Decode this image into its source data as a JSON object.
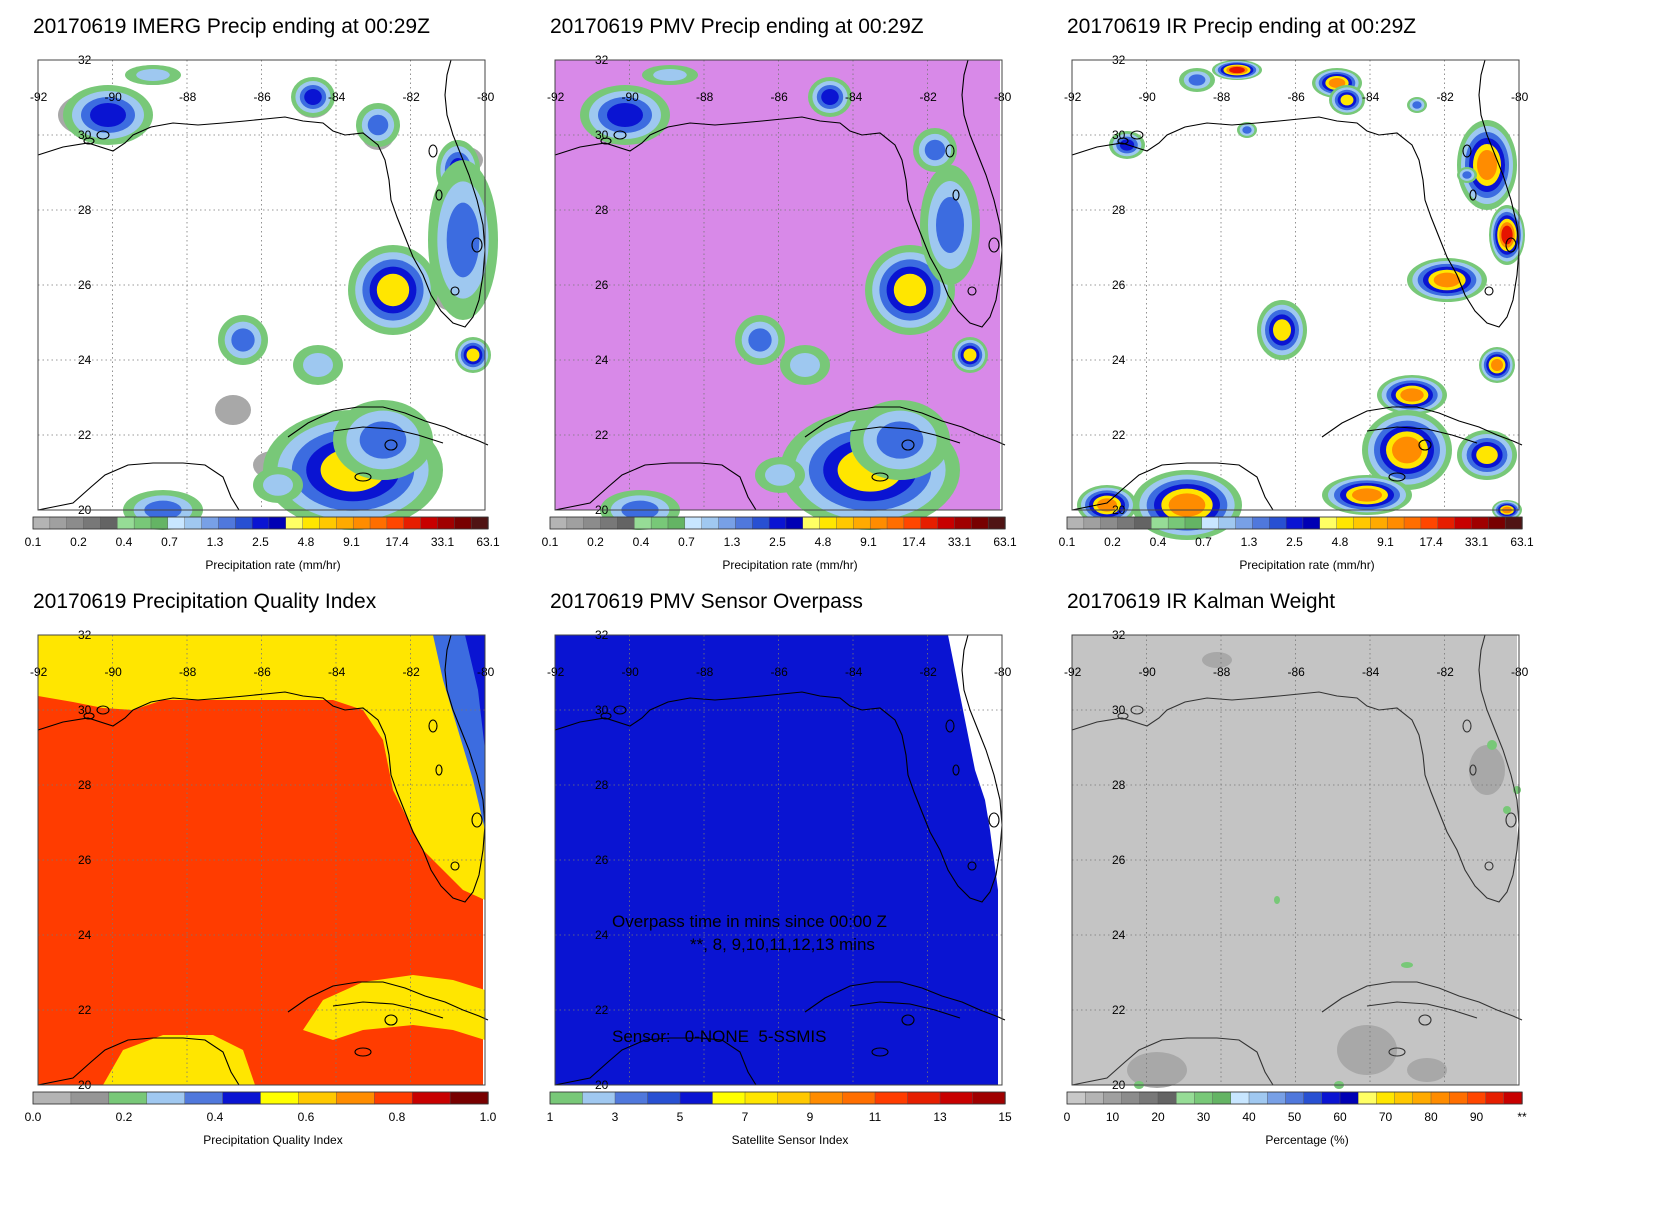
{
  "lat_labels": [
    "32",
    "30",
    "28",
    "26",
    "24",
    "22",
    "20"
  ],
  "lon_labels": [
    "-92",
    "-90",
    "-88",
    "-86",
    "-84",
    "-82",
    "-80"
  ],
  "colors": {
    "white": "#ffffff",
    "gray": "#a8a8a8",
    "gray_light": "#c4c4c4",
    "green": "#78c878",
    "light_blue": "#9ec8f0",
    "blue": "#3c6ce0",
    "dark_blue": "#0a14d2",
    "yellow": "#ffe600",
    "orange": "#ff8c00",
    "red": "#e61400",
    "violet": "#d889e8",
    "qi_red": "#ff3c00"
  },
  "panels": [
    {
      "id": "imerg",
      "title": "20170619 IMERG Precip ending at 00:29Z",
      "colorbar_label": "Precipitation rate (mm/hr)",
      "colorbar_ticks": [
        "0.1",
        "0.2",
        "0.4",
        "0.7",
        "1.3",
        "2.5",
        "4.8",
        "9.1",
        "17.4",
        "33.1",
        "63.1"
      ],
      "colorbar_colors": [
        "#b4b4b4",
        "#a0a0a0",
        "#8c8c8c",
        "#787878",
        "#646464",
        "#96dc96",
        "#78c878",
        "#64b464",
        "#c8e6ff",
        "#a0c8f0",
        "#78a0e6",
        "#5078dc",
        "#2850d2",
        "#0a14d2",
        "#0000b4",
        "#ffff64",
        "#ffe600",
        "#ffc800",
        "#ffaa00",
        "#ff8c00",
        "#ff6e00",
        "#ff4600",
        "#e61e00",
        "#c80000",
        "#a00000",
        "#780000",
        "#501414"
      ]
    },
    {
      "id": "pmv",
      "title": "20170619 PMV Precip ending at 00:29Z",
      "colorbar_label": "Precipitation rate (mm/hr)",
      "colorbar_ticks": [
        "0.1",
        "0.2",
        "0.4",
        "0.7",
        "1.3",
        "2.5",
        "4.8",
        "9.1",
        "17.4",
        "33.1",
        "63.1"
      ],
      "colorbar_colors": [
        "#b4b4b4",
        "#a0a0a0",
        "#8c8c8c",
        "#787878",
        "#646464",
        "#96dc96",
        "#78c878",
        "#64b464",
        "#c8e6ff",
        "#a0c8f0",
        "#78a0e6",
        "#5078dc",
        "#2850d2",
        "#0a14d2",
        "#0000b4",
        "#ffff64",
        "#ffe600",
        "#ffc800",
        "#ffaa00",
        "#ff8c00",
        "#ff6e00",
        "#ff4600",
        "#e61e00",
        "#c80000",
        "#a00000",
        "#780000",
        "#501414"
      ]
    },
    {
      "id": "ir",
      "title": "20170619 IR Precip ending at 00:29Z",
      "colorbar_label": "Precipitation rate (mm/hr)",
      "colorbar_ticks": [
        "0.1",
        "0.2",
        "0.4",
        "0.7",
        "1.3",
        "2.5",
        "4.8",
        "9.1",
        "17.4",
        "33.1",
        "63.1"
      ],
      "colorbar_colors": [
        "#b4b4b4",
        "#a0a0a0",
        "#8c8c8c",
        "#787878",
        "#646464",
        "#96dc96",
        "#78c878",
        "#64b464",
        "#c8e6ff",
        "#a0c8f0",
        "#78a0e6",
        "#5078dc",
        "#2850d2",
        "#0a14d2",
        "#0000b4",
        "#ffff64",
        "#ffe600",
        "#ffc800",
        "#ffaa00",
        "#ff8c00",
        "#ff6e00",
        "#ff4600",
        "#e61e00",
        "#c80000",
        "#a00000",
        "#780000",
        "#501414"
      ]
    },
    {
      "id": "qi",
      "title": "20170619 Precipitation Quality Index",
      "colorbar_label": "Precipitation Quality Index",
      "colorbar_ticks": [
        "0.0",
        "0.2",
        "0.4",
        "0.6",
        "0.8",
        "1.0"
      ],
      "colorbar_colors": [
        "#b4b4b4",
        "#969696",
        "#78c878",
        "#a0c8f0",
        "#5078dc",
        "#0a14d2",
        "#ffff00",
        "#ffc800",
        "#ff8c00",
        "#ff3c00",
        "#c80000",
        "#780000"
      ]
    },
    {
      "id": "sensor",
      "title": "20170619 PMV Sensor Overpass",
      "colorbar_label": "Satellite Sensor Index",
      "colorbar_ticks": [
        "1",
        "3",
        "5",
        "7",
        "9",
        "11",
        "13",
        "15"
      ],
      "colorbar_colors": [
        "#78c878",
        "#a0c8f0",
        "#5078dc",
        "#2850d2",
        "#0a14d2",
        "#ffff00",
        "#ffe600",
        "#ffc800",
        "#ff8c00",
        "#ff6e00",
        "#ff3c00",
        "#e61e00",
        "#c80000",
        "#a00000"
      ],
      "annotation": {
        "line1": "Overpass time in mins since 00:00 Z",
        "line2": "**, 8, 9,10,11,12,13 mins",
        "line3": "Sensor:   0-NONE  5-SSMIS"
      }
    },
    {
      "id": "kalman",
      "title": "20170619 IR Kalman Weight",
      "colorbar_label": "Percentage (%)",
      "colorbar_ticks": [
        "0",
        "10",
        "20",
        "30",
        "40",
        "50",
        "60",
        "70",
        "80",
        "90",
        "**"
      ],
      "colorbar_colors": [
        "#c8c8c8",
        "#b4b4b4",
        "#a0a0a0",
        "#8c8c8c",
        "#787878",
        "#646464",
        "#96dc96",
        "#78c878",
        "#64b464",
        "#c8e6ff",
        "#a0c8f0",
        "#78a0e6",
        "#5078dc",
        "#2850d2",
        "#0a14d2",
        "#0000b4",
        "#ffff64",
        "#ffe600",
        "#ffc800",
        "#ffaa00",
        "#ff8c00",
        "#ff6e00",
        "#ff4600",
        "#e61e00",
        "#c80000"
      ]
    }
  ]
}
